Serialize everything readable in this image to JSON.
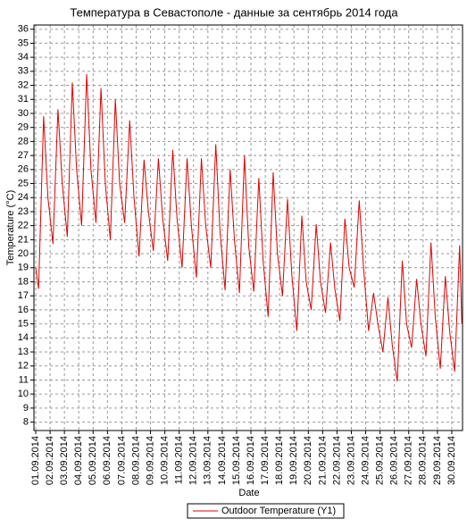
{
  "chart_data": {
    "type": "line",
    "title": "Температура в Севастополе - данные за сентябрь 2014 года",
    "x_label": "Date",
    "y_label": "Temperature (°C)",
    "x": [
      1.0,
      1.2,
      1.55,
      1.85,
      2.2,
      2.55,
      2.85,
      3.2,
      3.55,
      3.85,
      4.2,
      4.55,
      4.85,
      5.2,
      5.55,
      5.85,
      6.2,
      6.55,
      6.85,
      7.2,
      7.55,
      7.85,
      8.2,
      8.55,
      8.85,
      9.2,
      9.55,
      9.85,
      10.2,
      10.55,
      10.85,
      11.2,
      11.55,
      11.85,
      12.2,
      12.55,
      12.85,
      13.2,
      13.55,
      13.85,
      14.2,
      14.55,
      14.85,
      15.2,
      15.55,
      15.85,
      16.2,
      16.55,
      16.85,
      17.2,
      17.55,
      17.85,
      18.2,
      18.55,
      18.85,
      19.2,
      19.55,
      19.85,
      20.2,
      20.55,
      20.85,
      21.2,
      21.55,
      21.85,
      22.2,
      22.55,
      22.85,
      23.2,
      23.55,
      23.85,
      24.2,
      24.55,
      24.85,
      25.2,
      25.55,
      25.85,
      26.2,
      26.55,
      26.85,
      27.2,
      27.55,
      27.85,
      28.2,
      28.55,
      28.85,
      29.2,
      29.55,
      29.85,
      30.2,
      30.55,
      30.7
    ],
    "series": [
      {
        "name": "Outdoor Temperature (Y1)",
        "color": "#e00000",
        "values": [
          19,
          17.5,
          29.8,
          24,
          20.7,
          30.3,
          25,
          21.2,
          32.2,
          26,
          22.0,
          32.8,
          26,
          22.2,
          31.8,
          25,
          21.0,
          31.0,
          25,
          22.2,
          29.5,
          24,
          19.8,
          26.7,
          23,
          20.2,
          26.8,
          22.5,
          19.5,
          27.4,
          22.5,
          19.0,
          26.8,
          22,
          18.3,
          26.8,
          22,
          19.0,
          27.8,
          21.5,
          17.4,
          26.0,
          21,
          17.2,
          27.0,
          20.5,
          17.3,
          25.4,
          19.5,
          15.5,
          25.8,
          20,
          17.0,
          23.9,
          18.5,
          14.5,
          22.7,
          18,
          16.0,
          22.1,
          18,
          15.8,
          20.8,
          17.5,
          15.2,
          22.5,
          19,
          17.6,
          23.8,
          19,
          14.5,
          17.2,
          15,
          13.0,
          16.9,
          13.5,
          10.9,
          19.5,
          15,
          13.3,
          18.2,
          15,
          12.7,
          20.8,
          15.5,
          11.8,
          18.4,
          14.5,
          11.6,
          20.6,
          15
        ]
      }
    ],
    "xlim": [
      0.875,
      30.75
    ],
    "xticks": [
      {
        "value": 1,
        "label": "01.09.2014"
      },
      {
        "value": 2,
        "label": "02.09.2014"
      },
      {
        "value": 3,
        "label": "03.09.2014"
      },
      {
        "value": 4,
        "label": "04.09.2014"
      },
      {
        "value": 5,
        "label": "05.09.2014"
      },
      {
        "value": 6,
        "label": "06.09.2014"
      },
      {
        "value": 7,
        "label": "07.09.2014"
      },
      {
        "value": 8,
        "label": "08.09.2014"
      },
      {
        "value": 9,
        "label": "09.09.2014"
      },
      {
        "value": 10,
        "label": "10.09.2014"
      },
      {
        "value": 11,
        "label": "11.09.2014"
      },
      {
        "value": 12,
        "label": "12.09.2014"
      },
      {
        "value": 13,
        "label": "13.09.2014"
      },
      {
        "value": 14,
        "label": "14.09.2014"
      },
      {
        "value": 15,
        "label": "15.09.2014"
      },
      {
        "value": 16,
        "label": "16.09.2014"
      },
      {
        "value": 17,
        "label": "17.09.2014"
      },
      {
        "value": 18,
        "label": "18.09.2014"
      },
      {
        "value": 19,
        "label": "19.09.2014"
      },
      {
        "value": 20,
        "label": "20.09.2014"
      },
      {
        "value": 21,
        "label": "21.09.2014"
      },
      {
        "value": 22,
        "label": "22.09.2014"
      },
      {
        "value": 23,
        "label": "23.09.2014"
      },
      {
        "value": 24,
        "label": "24.09.2014"
      },
      {
        "value": 25,
        "label": "25.09.2014"
      },
      {
        "value": 26,
        "label": "26.09.2014"
      },
      {
        "value": 27,
        "label": "27.09.2014"
      },
      {
        "value": 28,
        "label": "28.09.2014"
      },
      {
        "value": 29,
        "label": "29.09.2014"
      },
      {
        "value": 30,
        "label": "30.09.2014"
      }
    ],
    "ylim": [
      7.4,
      36.3
    ],
    "yticks": [
      8,
      9,
      10,
      11,
      12,
      13,
      14,
      15,
      16,
      17,
      18,
      19,
      20,
      21,
      22,
      23,
      24,
      25,
      26,
      27,
      28,
      29,
      30,
      31,
      32,
      33,
      34,
      35,
      36
    ],
    "grid": true,
    "legend": "bottom"
  }
}
